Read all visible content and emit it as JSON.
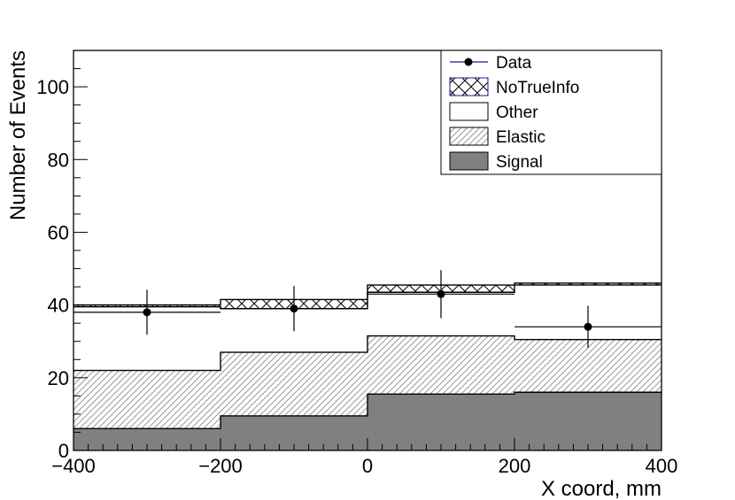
{
  "chart_data": {
    "type": "bar",
    "stacked": true,
    "histogram": true,
    "bin_edges": [
      -400,
      -200,
      0,
      200,
      400
    ],
    "xlabel": "X coord, mm",
    "ylabel": "Number of Events",
    "xlim": [
      -400,
      400
    ],
    "ylim": [
      0,
      110
    ],
    "x_ticks": [
      -400,
      -200,
      0,
      200,
      400
    ],
    "y_ticks": [
      0,
      20,
      40,
      60,
      80,
      100
    ],
    "legend_position": "top-right",
    "series": [
      {
        "name": "Signal",
        "style": "solid fill",
        "color": "#808080",
        "values": [
          6,
          9.5,
          15.5,
          16
        ]
      },
      {
        "name": "Elastic",
        "style": "diagonal hatch",
        "color": "#666666",
        "values": [
          16,
          17.5,
          16,
          14.5
        ]
      },
      {
        "name": "Other",
        "style": "hollow",
        "color": "#ffffff",
        "values": [
          17.5,
          12,
          12,
          15
        ]
      },
      {
        "name": "NoTrueInfo",
        "style": "cross hatch",
        "color": "#000000",
        "values": [
          0.5,
          2.5,
          2,
          0.5
        ]
      }
    ],
    "data_points": {
      "name": "Data",
      "x": [
        -300,
        -100,
        100,
        300
      ],
      "y": [
        38,
        39,
        43,
        34
      ],
      "err": [
        6.2,
        6.2,
        6.6,
        5.8
      ]
    }
  }
}
